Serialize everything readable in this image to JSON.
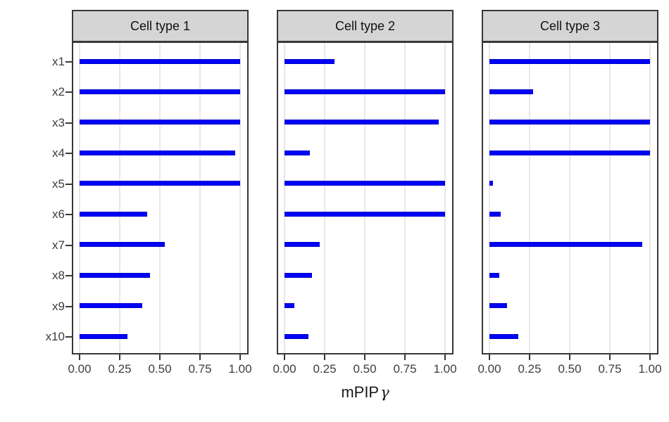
{
  "chart_data": {
    "type": "bar",
    "orientation": "horizontal",
    "faceted": true,
    "title": "",
    "xlabel": "mPIP γ",
    "xlabel_text": "mPIP",
    "xlabel_symbol": "γ",
    "ylabel": "",
    "categories": [
      "x1",
      "x2",
      "x3",
      "x4",
      "x5",
      "x6",
      "x7",
      "x8",
      "x9",
      "x10"
    ],
    "series": [
      {
        "name": "Cell type 1",
        "values": [
          1.0,
          1.0,
          1.0,
          0.97,
          1.0,
          0.42,
          0.53,
          0.44,
          0.39,
          0.3
        ]
      },
      {
        "name": "Cell type 2",
        "values": [
          0.31,
          1.0,
          0.96,
          0.16,
          1.0,
          1.0,
          0.22,
          0.17,
          0.06,
          0.15
        ]
      },
      {
        "name": "Cell type 3",
        "values": [
          1.0,
          0.27,
          1.0,
          1.0,
          0.02,
          0.07,
          0.95,
          0.06,
          0.11,
          0.18
        ]
      }
    ],
    "x_ticks": [
      "0.00",
      "0.25",
      "0.50",
      "0.75",
      "1.00"
    ],
    "x_tick_values": [
      0,
      0.25,
      0.5,
      0.75,
      1.0
    ],
    "xlim": [
      0,
      1
    ],
    "grid": "vertical-major-only",
    "legend": "none",
    "colors": {
      "bar_fill": "#0202f8",
      "bar_edge": "#0000c9",
      "gridline": "#e8e8e8",
      "panel_border": "#383838",
      "strip_background": "#d5d5d5",
      "axis_text": "#3d3d3d",
      "axis_title_text": "#1a1a1a"
    }
  }
}
